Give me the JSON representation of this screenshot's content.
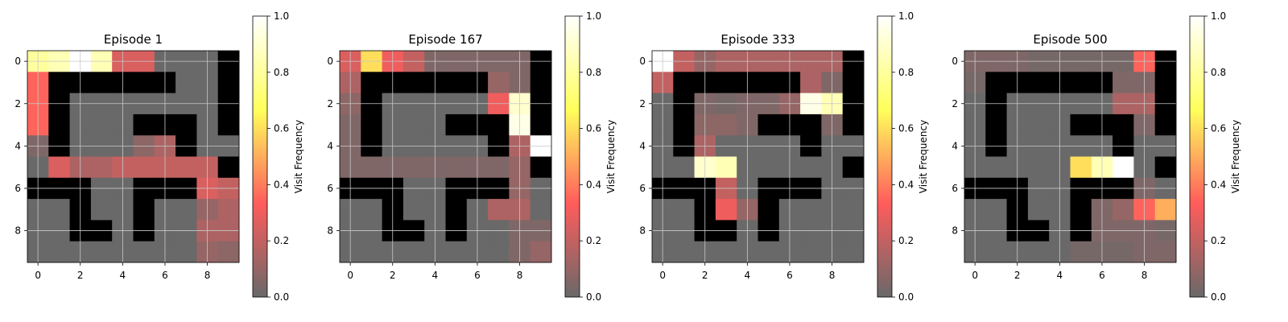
{
  "chart_data": [
    {
      "type": "heatmap",
      "title": "Episode 1",
      "colorbar_label": "Visit Frequency",
      "vmin": 0.0,
      "vmax": 1.0,
      "grid": true,
      "values": [
        [
          0.8,
          0.85,
          1.0,
          0.85,
          0.25,
          0.25,
          0,
          0,
          0,
          null
        ],
        [
          0.35,
          null,
          null,
          null,
          null,
          null,
          null,
          0,
          0,
          null
        ],
        [
          0.35,
          null,
          0,
          0,
          0,
          0,
          0,
          0,
          0,
          null
        ],
        [
          0.35,
          null,
          0,
          0,
          0,
          null,
          null,
          null,
          0,
          null
        ],
        [
          0.05,
          null,
          0,
          0,
          0,
          0.08,
          0.15,
          null,
          0,
          0
        ],
        [
          0,
          0.25,
          0.15,
          0.15,
          0.2,
          0.2,
          0.2,
          0.2,
          0.2,
          null
        ],
        [
          null,
          null,
          null,
          0,
          0,
          null,
          null,
          null,
          0.25,
          0.2
        ],
        [
          0,
          0,
          null,
          0,
          0,
          null,
          0,
          0,
          0.1,
          0.15
        ],
        [
          0,
          0,
          null,
          null,
          0,
          null,
          0,
          0,
          0.15,
          0.15
        ],
        [
          0,
          0,
          0,
          0,
          0,
          0,
          0,
          0,
          0.1,
          0.08
        ]
      ]
    },
    {
      "type": "heatmap",
      "title": "Episode 167",
      "colorbar_label": "Visit Frequency",
      "vmin": 0.0,
      "vmax": 1.0,
      "grid": true,
      "values": [
        [
          0.25,
          0.6,
          0.3,
          0.2,
          0.05,
          0.05,
          0.05,
          0.05,
          0.05,
          null
        ],
        [
          0.15,
          null,
          null,
          null,
          null,
          null,
          null,
          0.1,
          0.05,
          null
        ],
        [
          0.08,
          null,
          0,
          0,
          0,
          0,
          0,
          0.3,
          0.9,
          null
        ],
        [
          0.05,
          null,
          0,
          0,
          0,
          null,
          null,
          null,
          0.95,
          null
        ],
        [
          0.05,
          null,
          0,
          0,
          0,
          0,
          0,
          null,
          0.15,
          1.0
        ],
        [
          0.05,
          0.05,
          0.05,
          0.05,
          0.05,
          0.05,
          0.05,
          0.05,
          0.1,
          null
        ],
        [
          null,
          null,
          null,
          0,
          0,
          null,
          null,
          null,
          0.1,
          0
        ],
        [
          0,
          0,
          null,
          0,
          0,
          null,
          0,
          0.15,
          0.15,
          0
        ],
        [
          0,
          0,
          null,
          null,
          0,
          null,
          0,
          0,
          0.05,
          0.05
        ],
        [
          0,
          0,
          0,
          0,
          0,
          0,
          0,
          0,
          0.05,
          0.1
        ]
      ]
    },
    {
      "type": "heatmap",
      "title": "Episode 333",
      "colorbar_label": "Visit Frequency",
      "vmin": 0.0,
      "vmax": 1.0,
      "grid": true,
      "values": [
        [
          1.0,
          0.2,
          0.1,
          0.15,
          0.15,
          0.15,
          0.15,
          0.15,
          0.15,
          null
        ],
        [
          0.2,
          null,
          null,
          null,
          null,
          null,
          null,
          0.15,
          0.05,
          null
        ],
        [
          0,
          null,
          0.05,
          0.03,
          0.05,
          0.05,
          0.1,
          0.95,
          0.85,
          null
        ],
        [
          0,
          null,
          0.08,
          0.08,
          0.05,
          null,
          null,
          null,
          0.05,
          null
        ],
        [
          0,
          null,
          0.15,
          0,
          0,
          0,
          0,
          null,
          0,
          0
        ],
        [
          0,
          0,
          0.9,
          0.85,
          0,
          0,
          0,
          0,
          0,
          null
        ],
        [
          null,
          null,
          null,
          0.2,
          0,
          null,
          null,
          null,
          0,
          0
        ],
        [
          0,
          0,
          null,
          0.3,
          0.1,
          null,
          0,
          0,
          0,
          0
        ],
        [
          0,
          0,
          null,
          null,
          0,
          null,
          0,
          0,
          0,
          0
        ],
        [
          0,
          0,
          0,
          0,
          0,
          0,
          0,
          0,
          0,
          0
        ]
      ]
    },
    {
      "type": "heatmap",
      "title": "Episode 500",
      "colorbar_label": "Visit Frequency",
      "vmin": 0.0,
      "vmax": 1.0,
      "grid": true,
      "values": [
        [
          0.05,
          0.05,
          0.05,
          0.03,
          0.03,
          0.03,
          0.03,
          0.03,
          0.35,
          null
        ],
        [
          0.03,
          null,
          null,
          null,
          null,
          null,
          null,
          0.05,
          0.05,
          null
        ],
        [
          0,
          null,
          0,
          0,
          0,
          0,
          0,
          0.15,
          0.15,
          null
        ],
        [
          0,
          null,
          0,
          0,
          0,
          null,
          null,
          null,
          0.05,
          null
        ],
        [
          0,
          null,
          0,
          0,
          0,
          0,
          0,
          null,
          0,
          0
        ],
        [
          0,
          0,
          0,
          0,
          0,
          0.6,
          0.85,
          1.0,
          0,
          null
        ],
        [
          null,
          null,
          null,
          0,
          0,
          null,
          null,
          null,
          0.05,
          0
        ],
        [
          0,
          0,
          null,
          0,
          0,
          null,
          0.05,
          0.1,
          0.35,
          0.5
        ],
        [
          0,
          0,
          null,
          null,
          0,
          null,
          0.05,
          0.05,
          0.05,
          0.03
        ],
        [
          0,
          0,
          0,
          0,
          0,
          0.03,
          0.03,
          0.03,
          0.05,
          0.05
        ]
      ]
    }
  ],
  "axes": {
    "xticks": [
      "0",
      "2",
      "4",
      "6",
      "8"
    ],
    "yticks": [
      "0",
      "2",
      "4",
      "6",
      "8"
    ],
    "colorbar_ticks": [
      "0.0",
      "0.2",
      "0.4",
      "0.6",
      "0.8",
      "1.0"
    ]
  },
  "colors": {
    "wall": "#000000",
    "colormap": [
      "#696969",
      "#ff5c5c",
      "#ffff5c",
      "#ffffff"
    ],
    "grid": "#c8c8c8"
  }
}
